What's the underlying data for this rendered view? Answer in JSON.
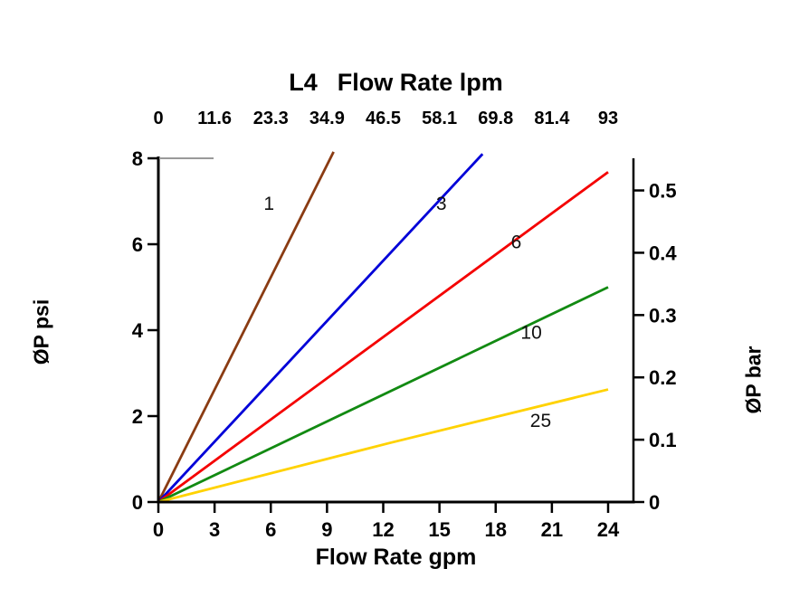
{
  "title": {
    "prefix": "L4",
    "main": "Flow Rate lpm"
  },
  "axis_labels": {
    "bottom": "Flow Rate gpm",
    "left": "ØP psi",
    "right": "ØP bar"
  },
  "chart_data": {
    "type": "line",
    "title": "L4 Flow Rate lpm",
    "xlabel": "Flow Rate gpm",
    "xlabel_top": "Flow Rate lpm",
    "ylabel_left": "ØP psi",
    "ylabel_right": "ØP bar",
    "xlim_gpm": [
      0,
      25.3
    ],
    "ylim_psi": [
      0,
      8
    ],
    "grid": false,
    "legend": "inline-curve-labels",
    "x_ticks_gpm": [
      0,
      3,
      6,
      9,
      12,
      15,
      18,
      21,
      24
    ],
    "x_ticks_lpm": [
      "0",
      "11.6",
      "23.3",
      "34.9",
      "46.5",
      "58.1",
      "69.8",
      "81.4",
      "93"
    ],
    "y_ticks_psi": [
      0,
      2,
      4,
      6,
      8
    ],
    "y_ticks_bar": [
      0,
      0.1,
      0.2,
      0.3,
      0.4,
      0.5
    ],
    "psi_per_bar": 14.5038,
    "series": [
      {
        "name": "1",
        "color": "#8a3b12",
        "points_gpm_psi": [
          [
            0,
            0
          ],
          [
            9.35,
            8.15
          ]
        ],
        "label_at_gpm_psi": [
          5.9,
          6.95
        ]
      },
      {
        "name": "3",
        "color": "#0000d8",
        "points_gpm_psi": [
          [
            0,
            0
          ],
          [
            17.3,
            8.1
          ]
        ],
        "label_at_gpm_psi": [
          15.1,
          6.95
        ]
      },
      {
        "name": "6",
        "color": "#f40000",
        "points_gpm_psi": [
          [
            0,
            0
          ],
          [
            24,
            7.68
          ]
        ],
        "label_at_gpm_psi": [
          19.1,
          6.05
        ]
      },
      {
        "name": "10",
        "color": "#128a12",
        "points_gpm_psi": [
          [
            0,
            0
          ],
          [
            24,
            5.0
          ]
        ],
        "label_at_gpm_psi": [
          19.9,
          3.95
        ]
      },
      {
        "name": "25",
        "color": "#ffd200",
        "points_gpm_psi": [
          [
            0,
            0
          ],
          [
            12.3,
            1.37
          ],
          [
            24,
            2.62
          ]
        ],
        "label_at_gpm_psi": [
          20.4,
          1.9
        ]
      }
    ]
  }
}
